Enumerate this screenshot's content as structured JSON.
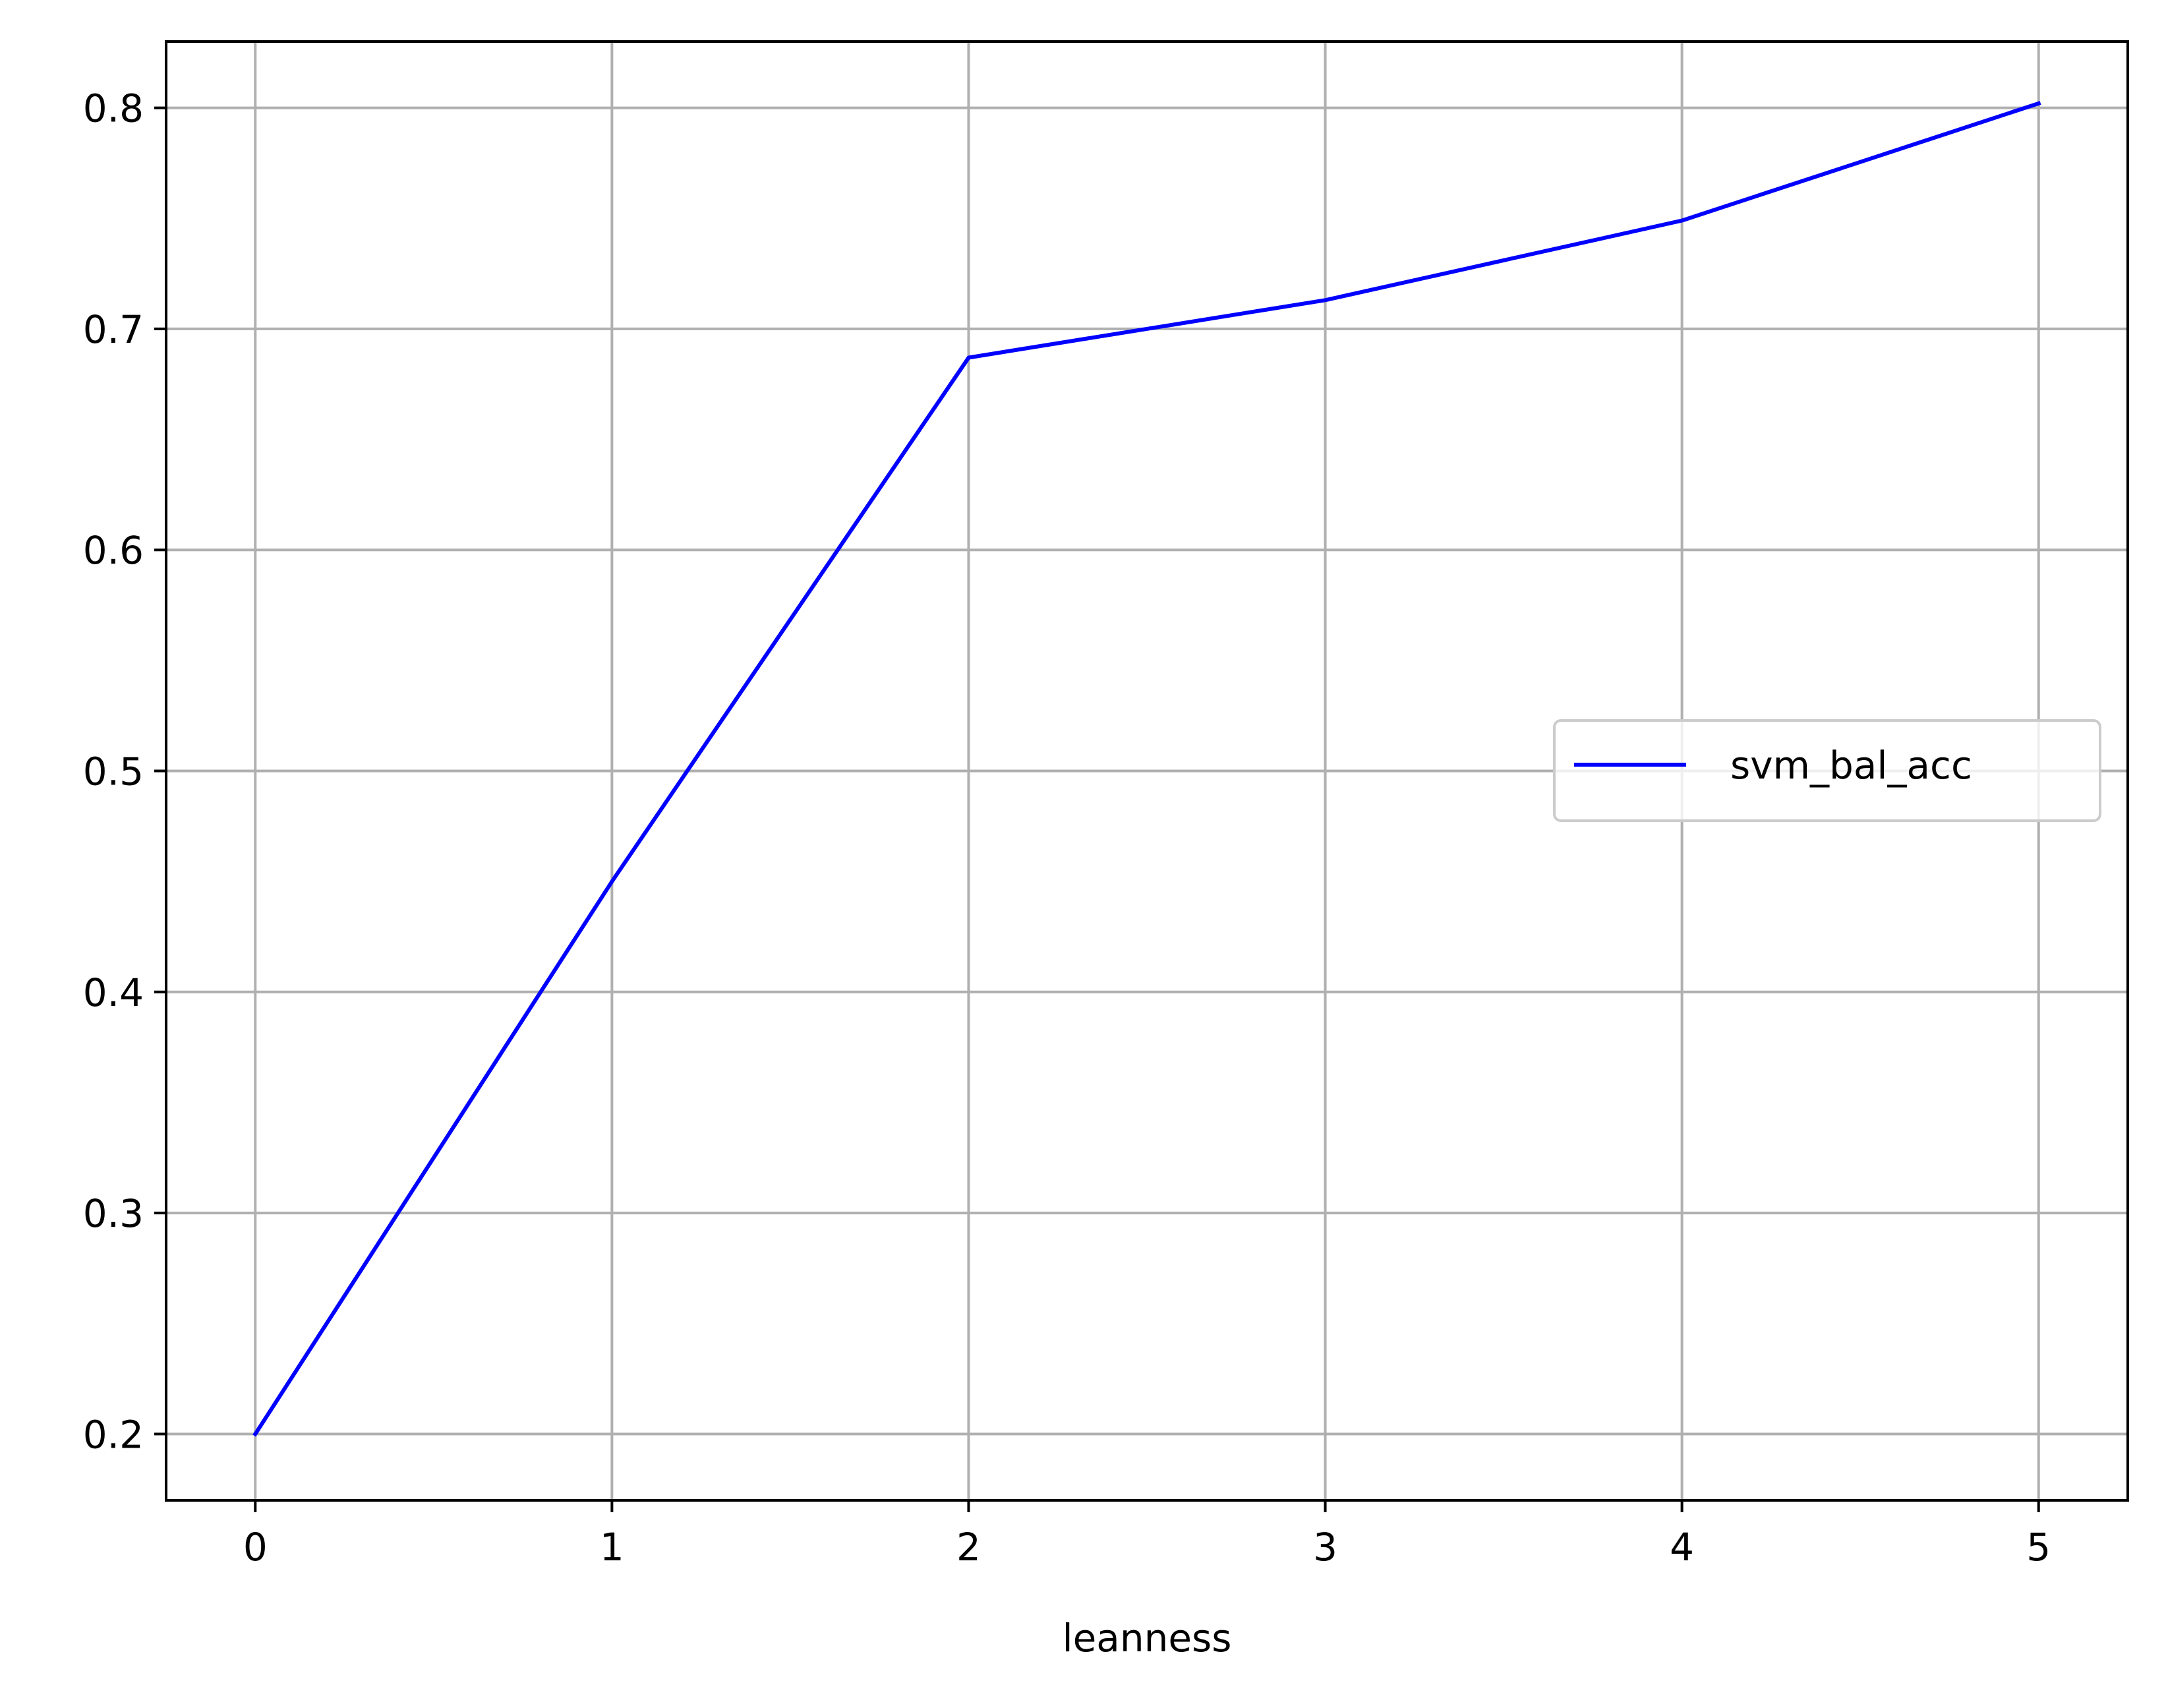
{
  "chart_data": {
    "type": "line",
    "title": "",
    "xlabel": "leanness",
    "ylabel": "",
    "x": [
      0,
      1,
      2,
      3,
      4,
      5
    ],
    "series": [
      {
        "name": "svm_bal_acc",
        "values": [
          0.2,
          0.45,
          0.687,
          0.713,
          0.749,
          0.802
        ],
        "color": "#0000ff"
      }
    ],
    "xlim": [
      -0.25,
      5.25
    ],
    "ylim": [
      0.17,
      0.83
    ],
    "xticks": [
      0,
      1,
      2,
      3,
      4,
      5
    ],
    "xtick_labels": [
      "0",
      "1",
      "2",
      "3",
      "4",
      "5"
    ],
    "yticks": [
      0.2,
      0.3,
      0.4,
      0.5,
      0.6,
      0.7,
      0.8
    ],
    "ytick_labels": [
      "0.2",
      "0.3",
      "0.4",
      "0.5",
      "0.6",
      "0.7",
      "0.8"
    ],
    "grid": true,
    "legend_position": "center-right",
    "colors": {
      "grid": "#b0b0b0",
      "axes": "#000000",
      "legend_border": "#cccccc"
    }
  }
}
